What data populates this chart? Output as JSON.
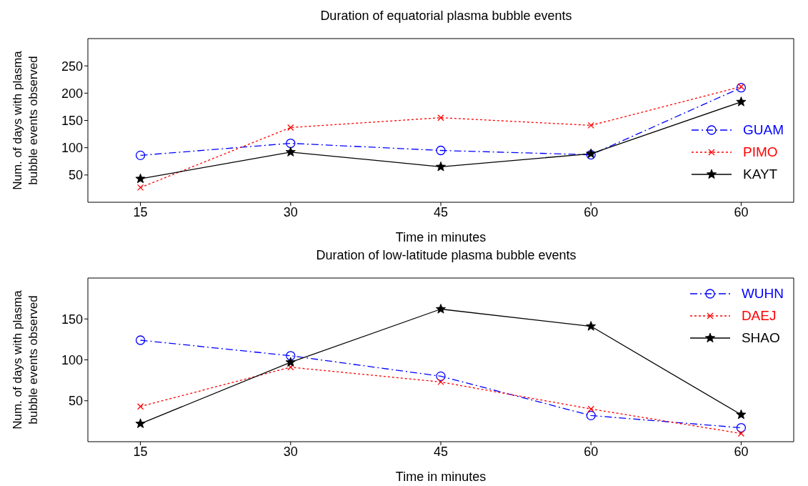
{
  "chart_data": [
    {
      "type": "line",
      "title": "Duration of equatorial plasma bubble events",
      "xlabel": "Time in minutes",
      "ylabel": "Num. of days with plasma\nbubble events observed",
      "categories": [
        "15",
        "30",
        "45",
        "60",
        "60"
      ],
      "ylim": [
        0,
        300
      ],
      "yticks": [
        50,
        100,
        150,
        200,
        250
      ],
      "grid": false,
      "legend": "bottom right",
      "series": [
        {
          "name": "GUAM",
          "color": "#0000ff",
          "marker": "circle",
          "line_style": "dashdot",
          "values": [
            86,
            108,
            95,
            87,
            210
          ]
        },
        {
          "name": "PIMO",
          "color": "#ff0000",
          "marker": "cross",
          "line_style": "dotted",
          "values": [
            27,
            137,
            155,
            141,
            212
          ]
        },
        {
          "name": "KAYT",
          "color": "#000000",
          "marker": "star",
          "line_style": "solid",
          "values": [
            43,
            92,
            65,
            89,
            184
          ]
        }
      ]
    },
    {
      "type": "line",
      "title": "Duration of low-latitude plasma bubble events",
      "xlabel": "Time in minutes",
      "ylabel": "Num. of days with plasma\nbubble events observed",
      "categories": [
        "15",
        "30",
        "45",
        "60",
        "60"
      ],
      "ylim": [
        0,
        200
      ],
      "yticks": [
        50,
        100,
        150
      ],
      "grid": false,
      "legend": "top right",
      "series": [
        {
          "name": "WUHN",
          "color": "#0000ff",
          "marker": "circle",
          "line_style": "dashdot",
          "values": [
            124,
            105,
            80,
            32,
            17
          ]
        },
        {
          "name": "DAEJ",
          "color": "#ff0000",
          "marker": "cross",
          "line_style": "dotted",
          "values": [
            43,
            91,
            73,
            40,
            10
          ]
        },
        {
          "name": "SHAO",
          "color": "#000000",
          "marker": "star",
          "line_style": "solid",
          "values": [
            22,
            97,
            162,
            141,
            33
          ]
        }
      ]
    }
  ]
}
